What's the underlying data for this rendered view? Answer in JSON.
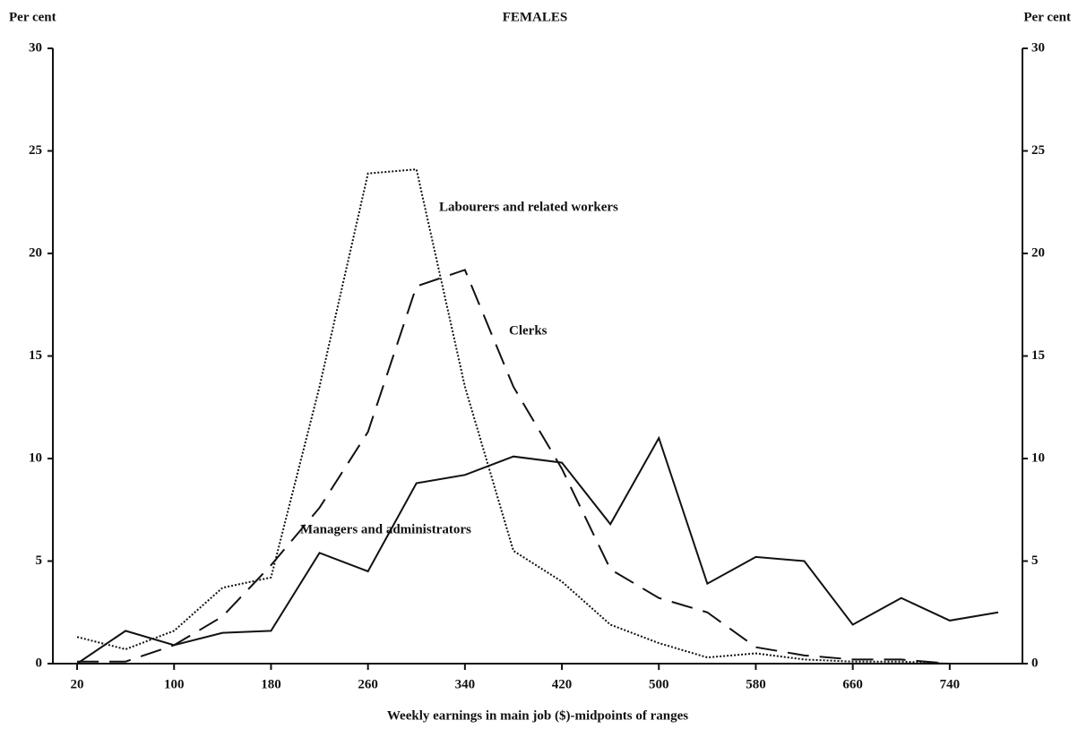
{
  "chart_data": {
    "type": "line",
    "title": "FEMALES",
    "y_label": "Per cent",
    "y2_label": "Per cent",
    "x_label": "Weekly earnings in main job ($)-midpoints of ranges",
    "x": [
      20,
      60,
      100,
      140,
      180,
      220,
      260,
      300,
      340,
      380,
      420,
      460,
      500,
      540,
      580,
      620,
      660,
      700,
      740,
      780
    ],
    "series": [
      {
        "name": "Managers and administrators",
        "color": "#111111",
        "style": "solid",
        "values": [
          0,
          1.6,
          0.9,
          1.5,
          1.6,
          5.4,
          4.5,
          8.8,
          9.2,
          10.1,
          9.8,
          6.8,
          11.0,
          3.9,
          5.2,
          5.0,
          1.9,
          3.2,
          2.1,
          2.5
        ]
      },
      {
        "name": "Clerks",
        "color": "#111111",
        "style": "dashed",
        "values": [
          0.1,
          0.1,
          0.9,
          2.3,
          4.8,
          7.6,
          11.3,
          18.4,
          19.2,
          13.5,
          9.5,
          4.6,
          3.2,
          2.5,
          0.8,
          0.4,
          0.2,
          0.2,
          0,
          0
        ]
      },
      {
        "name": "Labourers and related workers",
        "color": "#111111",
        "style": "dotted",
        "values": [
          1.3,
          0.7,
          1.6,
          3.7,
          4.2,
          13.5,
          23.9,
          24.1,
          13.5,
          5.5,
          4.0,
          1.9,
          1.0,
          0.3,
          0.5,
          0.2,
          0.1,
          0.1,
          0,
          0
        ]
      }
    ],
    "xlim": [
      0,
      800
    ],
    "xticks": [
      20,
      100,
      180,
      260,
      340,
      420,
      500,
      580,
      660,
      740
    ],
    "ylim": [
      0,
      30
    ],
    "yticks": [
      0,
      5,
      10,
      15,
      20,
      25,
      30
    ],
    "y2lim": [
      0,
      30
    ],
    "y2ticks": [
      0,
      5,
      10,
      15,
      20,
      25,
      30
    ]
  }
}
